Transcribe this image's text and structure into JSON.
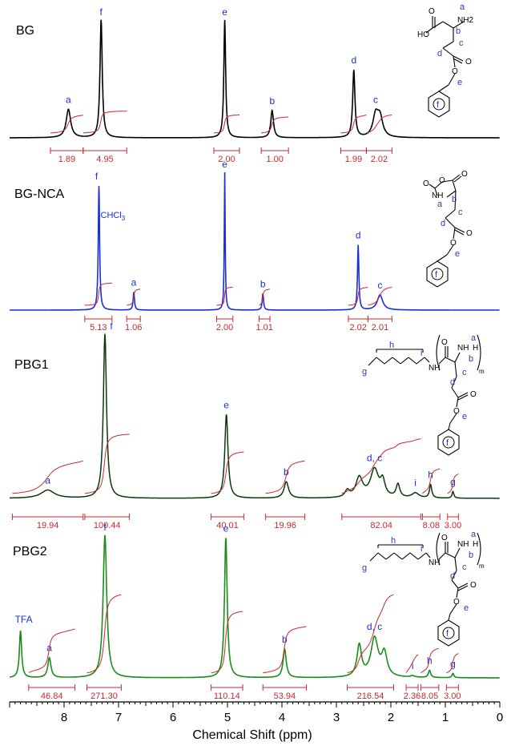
{
  "chart_data": {
    "type": "line",
    "xlabel": "Chemical Shift (ppm)",
    "xlim": [
      9.0,
      0.0
    ],
    "x_major_ticks": [
      8,
      7,
      6,
      5,
      4,
      3,
      2,
      1,
      0
    ],
    "x_tick_labels": [
      "8",
      "7",
      "6",
      "5",
      "4",
      "3",
      "2",
      "1",
      "0"
    ],
    "colors": {
      "axis": "#000000",
      "peak_label": "#2a3cb0",
      "integral": "#c8282d"
    },
    "spectra": [
      {
        "name": "BG",
        "color": "#000000",
        "peaks": [
          {
            "label": "a",
            "ppm": 7.92,
            "height": 0.24,
            "width": 0.1
          },
          {
            "label": "f",
            "ppm": 7.32,
            "height": 1.0,
            "width": 0.05
          },
          {
            "label": "e",
            "ppm": 5.05,
            "height": 1.0,
            "width": 0.04
          },
          {
            "label": "b",
            "ppm": 4.18,
            "height": 0.23,
            "width": 0.06
          },
          {
            "label": "d",
            "ppm": 2.68,
            "height": 0.57,
            "width": 0.05
          },
          {
            "label": "c",
            "ppm": 2.28,
            "height": 0.18,
            "width": 0.12
          }
        ],
        "integrals": [
          {
            "value": "1.89",
            "from": 8.25,
            "to": 7.65
          },
          {
            "value": "4.95",
            "from": 7.65,
            "to": 6.85
          },
          {
            "value": "2.00",
            "from": 5.25,
            "to": 4.78
          },
          {
            "value": "1.00",
            "from": 4.38,
            "to": 3.88
          },
          {
            "value": "1.99",
            "from": 2.92,
            "to": 2.45
          },
          {
            "value": "2.02",
            "from": 2.45,
            "to": 1.98
          }
        ]
      },
      {
        "name": "BG-NCA",
        "color": "#1a2fd6",
        "annotations": [
          "CHCl3"
        ],
        "peaks": [
          {
            "label": "f",
            "ppm": 7.36,
            "height": 0.9,
            "width": 0.03
          },
          {
            "label": "a",
            "ppm": 6.72,
            "height": 0.13,
            "width": 0.03
          },
          {
            "label": "e",
            "ppm": 5.05,
            "height": 1.0,
            "width": 0.02
          },
          {
            "label": "b",
            "ppm": 4.35,
            "height": 0.12,
            "width": 0.03
          },
          {
            "label": "d",
            "ppm": 2.6,
            "height": 0.47,
            "width": 0.03
          },
          {
            "label": "c",
            "ppm": 2.2,
            "height": 0.11,
            "width": 0.12
          }
        ],
        "integrals": [
          {
            "value": "5.13",
            "from": 7.62,
            "to": 7.12
          },
          {
            "value": "1.06",
            "from": 6.85,
            "to": 6.6
          },
          {
            "value": "2.00",
            "from": 5.2,
            "to": 4.9
          },
          {
            "value": "1.01",
            "from": 4.42,
            "to": 4.22
          },
          {
            "value": "2.02",
            "from": 2.78,
            "to": 2.42
          },
          {
            "value": "2.01",
            "from": 2.42,
            "to": 1.98
          }
        ]
      },
      {
        "name": "PBG1",
        "color": "#0a3a0a",
        "peaks": [
          {
            "label": "a",
            "ppm": 8.3,
            "height": 0.05,
            "width": 0.3
          },
          {
            "label": "f",
            "ppm": 7.25,
            "height": 1.0,
            "width": 0.07
          },
          {
            "label": "e",
            "ppm": 5.02,
            "height": 0.51,
            "width": 0.07
          },
          {
            "label": "b",
            "ppm": 3.92,
            "height": 0.1,
            "width": 0.1
          },
          {
            "label": "d, c",
            "ppm": 2.3,
            "height": 0.17,
            "width": 0.18
          },
          {
            "label": "i",
            "ppm": 1.55,
            "height": 0.03,
            "width": 0.15
          },
          {
            "label": "h",
            "ppm": 1.27,
            "height": 0.08,
            "width": 0.05
          },
          {
            "label": "g",
            "ppm": 0.86,
            "height": 0.04,
            "width": 0.04
          }
        ],
        "integrals": [
          {
            "value": "19.94",
            "from": 8.95,
            "to": 7.65
          },
          {
            "value": "100.44",
            "from": 7.62,
            "to": 6.8
          },
          {
            "value": "40.01",
            "from": 5.3,
            "to": 4.7
          },
          {
            "value": "19.96",
            "from": 4.3,
            "to": 3.58
          },
          {
            "value": "82.04",
            "from": 2.9,
            "to": 1.45
          },
          {
            "value": "8.08",
            "from": 1.42,
            "to": 1.1
          },
          {
            "value": "3.00",
            "from": 0.96,
            "to": 0.76
          }
        ]
      },
      {
        "name": "PBG2",
        "color": "#1a8c1a",
        "annotations": [
          "TFA"
        ],
        "peaks": [
          {
            "label": "TFA",
            "ppm": 8.8,
            "height": 0.33,
            "width": 0.05
          },
          {
            "label": "a",
            "ppm": 8.27,
            "height": 0.14,
            "width": 0.07
          },
          {
            "label": "f",
            "ppm": 7.25,
            "height": 1.0,
            "width": 0.08
          },
          {
            "label": "e",
            "ppm": 5.03,
            "height": 0.98,
            "width": 0.06
          },
          {
            "label": "b",
            "ppm": 3.95,
            "height": 0.2,
            "width": 0.07
          },
          {
            "label": "d, c",
            "ppm": 2.3,
            "height": 0.27,
            "width": 0.16
          },
          {
            "label": "i",
            "ppm": 1.6,
            "height": 0.01,
            "width": 0.1
          },
          {
            "label": "h",
            "ppm": 1.29,
            "height": 0.05,
            "width": 0.05
          },
          {
            "label": "g",
            "ppm": 0.86,
            "height": 0.03,
            "width": 0.04
          }
        ],
        "integrals": [
          {
            "value": "46.84",
            "from": 8.65,
            "to": 7.8
          },
          {
            "value": "271.30",
            "from": 7.58,
            "to": 6.95
          },
          {
            "value": "110.14",
            "from": 5.3,
            "to": 4.72
          },
          {
            "value": "53.94",
            "from": 4.35,
            "to": 3.55
          },
          {
            "value": "216.54",
            "from": 2.8,
            "to": 1.95
          },
          {
            "value": "2.36",
            "from": 1.72,
            "to": 1.5
          },
          {
            "value": "8.05",
            "from": 1.45,
            "to": 1.12
          },
          {
            "value": "3.00",
            "from": 0.98,
            "to": 0.76
          }
        ]
      }
    ]
  },
  "structures": {
    "bg": {
      "atoms": [
        "O",
        "HO",
        "NH2",
        "O",
        "O",
        "a",
        "b",
        "c",
        "d",
        "e",
        "f"
      ]
    },
    "nca": {
      "atoms": [
        "O",
        "O",
        "O",
        "NH",
        "O",
        "O",
        "a",
        "b",
        "c",
        "d",
        "e",
        "f"
      ]
    },
    "pbg": {
      "atoms": [
        "O",
        "NH",
        "H",
        "NH",
        "O",
        "O",
        "a",
        "b",
        "c",
        "d",
        "e",
        "f",
        "g",
        "h",
        "i",
        "m"
      ]
    }
  }
}
